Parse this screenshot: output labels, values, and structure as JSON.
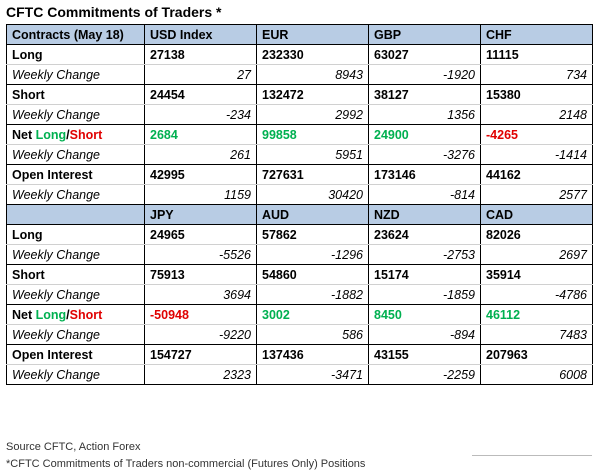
{
  "title": "CFTC Commitments of Traders *",
  "blocks": [
    {
      "header": {
        "label": "Contracts (May 18)",
        "cols": [
          "USD Index",
          "EUR",
          "GBP",
          "CHF"
        ]
      },
      "long": {
        "label": "Long",
        "values": [
          "27138",
          "232330",
          "63027",
          "11115"
        ]
      },
      "long_change": {
        "label": "Weekly Change",
        "values": [
          "27",
          "8943",
          "-1920",
          "734"
        ]
      },
      "short": {
        "label": "Short",
        "values": [
          "24454",
          "132472",
          "38127",
          "15380"
        ]
      },
      "short_change": {
        "label": "Weekly Change",
        "values": [
          "-234",
          "2992",
          "1356",
          "2148"
        ]
      },
      "net": {
        "label_net": "Net ",
        "label_long": "Long",
        "label_slash": "/",
        "label_short": "Short",
        "values": [
          "2684",
          "99858",
          "24900",
          "-4265"
        ]
      },
      "net_change": {
        "label": "Weekly Change",
        "values": [
          "261",
          "5951",
          "-3276",
          "-1414"
        ]
      },
      "oi": {
        "label": "Open Interest",
        "values": [
          "42995",
          "727631",
          "173146",
          "44162"
        ]
      },
      "oi_change": {
        "label": "Weekly Change",
        "values": [
          "1159",
          "30420",
          "-814",
          "2577"
        ]
      }
    },
    {
      "header": {
        "label": "",
        "cols": [
          "JPY",
          "AUD",
          "NZD",
          "CAD"
        ]
      },
      "long": {
        "label": "Long",
        "values": [
          "24965",
          "57862",
          "23624",
          "82026"
        ]
      },
      "long_change": {
        "label": "Weekly Change",
        "values": [
          "-5526",
          "-1296",
          "-2753",
          "2697"
        ]
      },
      "short": {
        "label": "Short",
        "values": [
          "75913",
          "54860",
          "15174",
          "35914"
        ]
      },
      "short_change": {
        "label": "Weekly Change",
        "values": [
          "3694",
          "-1882",
          "-1859",
          "-4786"
        ]
      },
      "net": {
        "label_net": "Net ",
        "label_long": "Long",
        "label_slash": "/",
        "label_short": "Short",
        "values": [
          "-50948",
          "3002",
          "8450",
          "46112"
        ]
      },
      "net_change": {
        "label": "Weekly Change",
        "values": [
          "-9220",
          "586",
          "-894",
          "7483"
        ]
      },
      "oi": {
        "label": "Open Interest",
        "values": [
          "154727",
          "137436",
          "43155",
          "207963"
        ]
      },
      "oi_change": {
        "label": "Weekly Change",
        "values": [
          "2323",
          "-3471",
          "-2259",
          "6008"
        ]
      }
    }
  ],
  "colors": {
    "positive": "#00b050",
    "negative": "#e00000",
    "header_bg": "#b8cce4"
  },
  "source": "Source CFTC, Action Forex",
  "footnote": "*CFTC Commitments of Traders non-commercial (Futures Only) Positions"
}
